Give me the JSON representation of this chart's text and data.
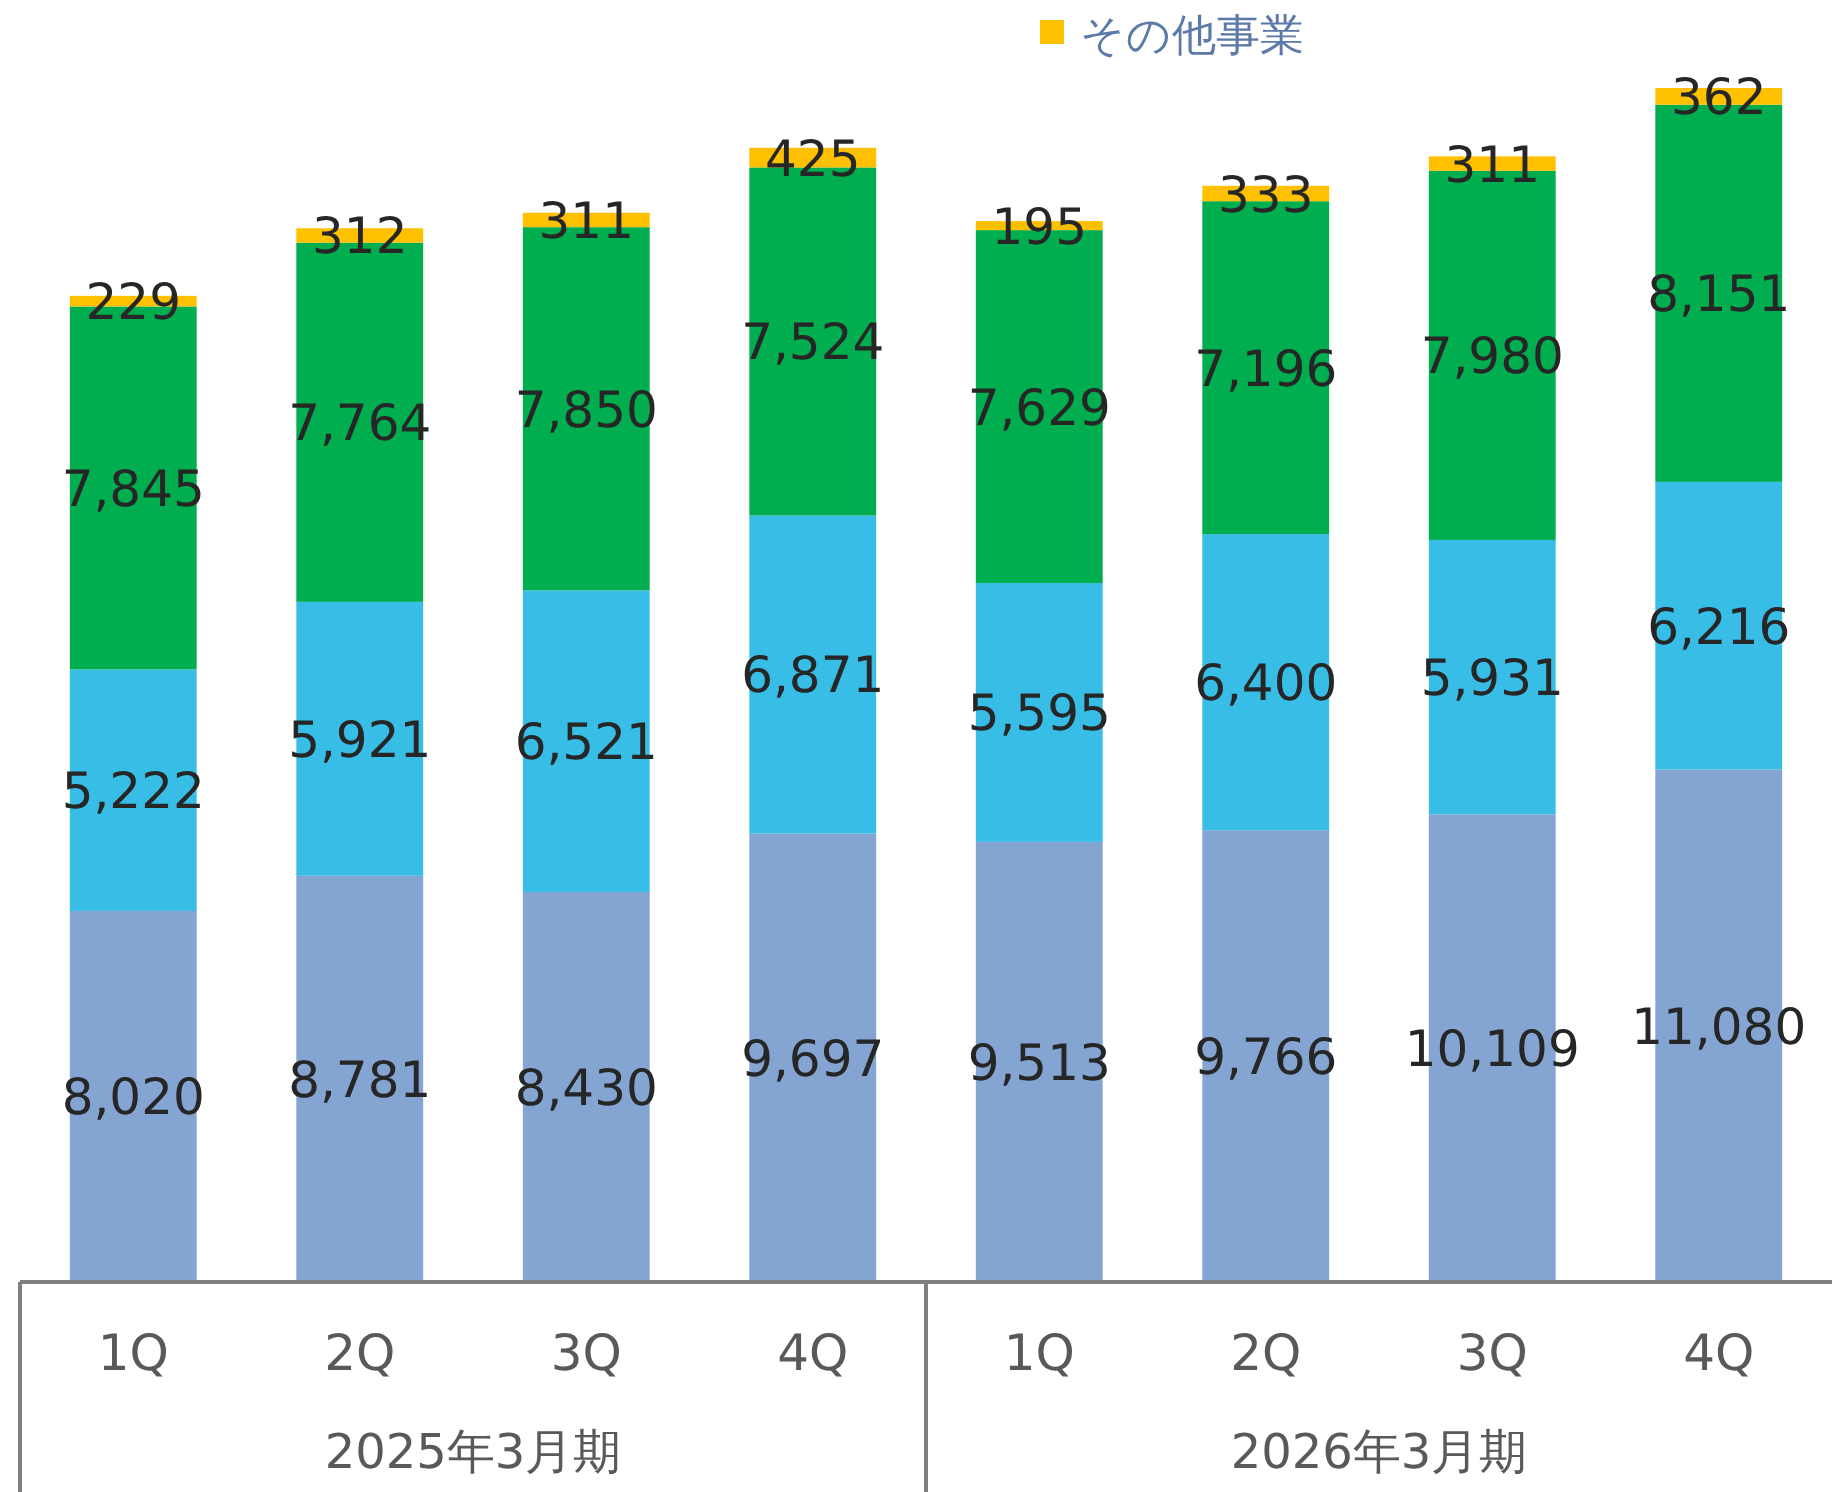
{
  "chart_data": {
    "type": "bar",
    "stacked": true,
    "legend": "top",
    "categories": [
      "1Q",
      "2Q",
      "3Q",
      "4Q",
      "1Q",
      "2Q",
      "3Q",
      "4Q"
    ],
    "series": [
      {
        "color": "#84a4d2",
        "values": [
          8020,
          8781,
          8430,
          9697,
          9513,
          9766,
          10109,
          11080
        ],
        "value_labels": [
          "8,020",
          "8,781",
          "8,430",
          "9,697",
          "9,513",
          "9,766",
          "10,109",
          "11,080"
        ]
      },
      {
        "color": "#38bde6",
        "values": [
          5222,
          5921,
          6521,
          6871,
          5595,
          6400,
          5931,
          6216
        ],
        "value_labels": [
          "5,222",
          "5,921",
          "6,521",
          "6,871",
          "5,595",
          "6,400",
          "5,931",
          "6,216"
        ]
      },
      {
        "color": "#00ae4f",
        "values": [
          7845,
          7764,
          7850,
          7524,
          7629,
          7196,
          7980,
          8151
        ],
        "value_labels": [
          "7,845",
          "7,764",
          "7,850",
          "7,524",
          "7,629",
          "7,196",
          "7,980",
          "8,151"
        ]
      },
      {
        "name": "その他事業",
        "color": "#ffc000",
        "values": [
          229,
          312,
          311,
          425,
          195,
          333,
          311,
          362
        ],
        "value_labels": [
          "229",
          "312",
          "311",
          "425",
          "195",
          "333",
          "311",
          "362"
        ]
      }
    ],
    "annotations": [
      "2025年3月期",
      "2026年3月期"
    ]
  }
}
